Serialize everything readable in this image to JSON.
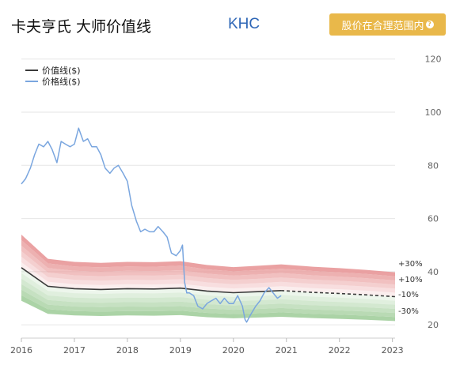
{
  "header": {
    "title": "卡夫亨氏 大师价值线",
    "ticker": "KHC",
    "status_button_label": "股价在合理范围内",
    "status_button_help_glyph": "?"
  },
  "colors": {
    "value_line": "#3a3a3a",
    "price_line": "#7aa6df",
    "overvalued_band": "#e8999a",
    "undervalued_band": "#a7d1a1",
    "status_button": "#e9b84a",
    "ticker": "#2f67b7"
  },
  "chart_data": {
    "type": "line",
    "title": "",
    "xlabel": "",
    "ylabel": "",
    "xlim": [
      2016.0,
      2023.05
    ],
    "ylim": [
      15,
      122
    ],
    "y_ticks": [
      20,
      40,
      60,
      80,
      100,
      120
    ],
    "x_ticks": [
      2016,
      2017,
      2018,
      2019,
      2020,
      2021,
      2022,
      2023
    ],
    "y_axis_position": "right",
    "grid": "horizontal",
    "legend": {
      "position": "top-left",
      "entries": [
        {
          "label": "价值线($)",
          "color": "#3a3a3a"
        },
        {
          "label": "价格线($)",
          "color": "#7aa6df"
        }
      ]
    },
    "band_labels": [
      "+30%",
      "+10%",
      "-10%",
      "-30%"
    ],
    "band_offsets": [
      0.3,
      0.25,
      0.2,
      0.15,
      0.1,
      0.05,
      -0.05,
      -0.1,
      -0.15,
      -0.2,
      -0.25,
      -0.3
    ],
    "value_line_last_actual_x": 2020.9,
    "series": [
      {
        "name": "价值线($)",
        "x": [
          2016.0,
          2016.5,
          2017.0,
          2017.5,
          2018.0,
          2018.5,
          2019.0,
          2019.5,
          2020.0,
          2020.5,
          2020.9,
          2021.5,
          2022.0,
          2022.5,
          2023.05
        ],
        "values": [
          41.5,
          34.5,
          33.6,
          33.3,
          33.6,
          33.5,
          33.8,
          32.7,
          32.1,
          32.5,
          32.9,
          32.2,
          31.8,
          31.3,
          30.6
        ]
      },
      {
        "name": "价格线($)",
        "x": [
          2016.0,
          2016.08,
          2016.17,
          2016.25,
          2016.33,
          2016.42,
          2016.5,
          2016.58,
          2016.67,
          2016.75,
          2016.83,
          2016.92,
          2017.0,
          2017.08,
          2017.17,
          2017.25,
          2017.33,
          2017.42,
          2017.5,
          2017.58,
          2017.67,
          2017.75,
          2017.83,
          2017.92,
          2018.0,
          2018.08,
          2018.17,
          2018.25,
          2018.33,
          2018.42,
          2018.5,
          2018.58,
          2018.67,
          2018.75,
          2018.83,
          2018.92,
          2019.0,
          2019.04,
          2019.08,
          2019.12,
          2019.17,
          2019.25,
          2019.33,
          2019.42,
          2019.5,
          2019.58,
          2019.67,
          2019.75,
          2019.83,
          2019.92,
          2020.0,
          2020.08,
          2020.17,
          2020.22,
          2020.25,
          2020.33,
          2020.42,
          2020.5,
          2020.58,
          2020.67,
          2020.75,
          2020.83,
          2020.9
        ],
        "values": [
          73,
          75,
          79,
          84,
          88,
          87,
          89,
          86,
          81,
          89,
          88,
          87,
          88,
          94,
          89,
          90,
          87,
          87,
          84,
          79,
          77,
          79,
          80,
          77,
          74,
          65,
          59,
          55,
          56,
          55,
          55,
          57,
          55,
          53,
          47,
          46,
          48,
          50,
          36,
          32,
          32,
          31,
          27,
          26,
          28,
          29,
          30,
          28,
          30,
          28,
          28,
          31,
          27,
          22,
          21,
          24,
          27,
          29,
          32,
          34,
          32,
          30,
          31
        ]
      }
    ]
  }
}
